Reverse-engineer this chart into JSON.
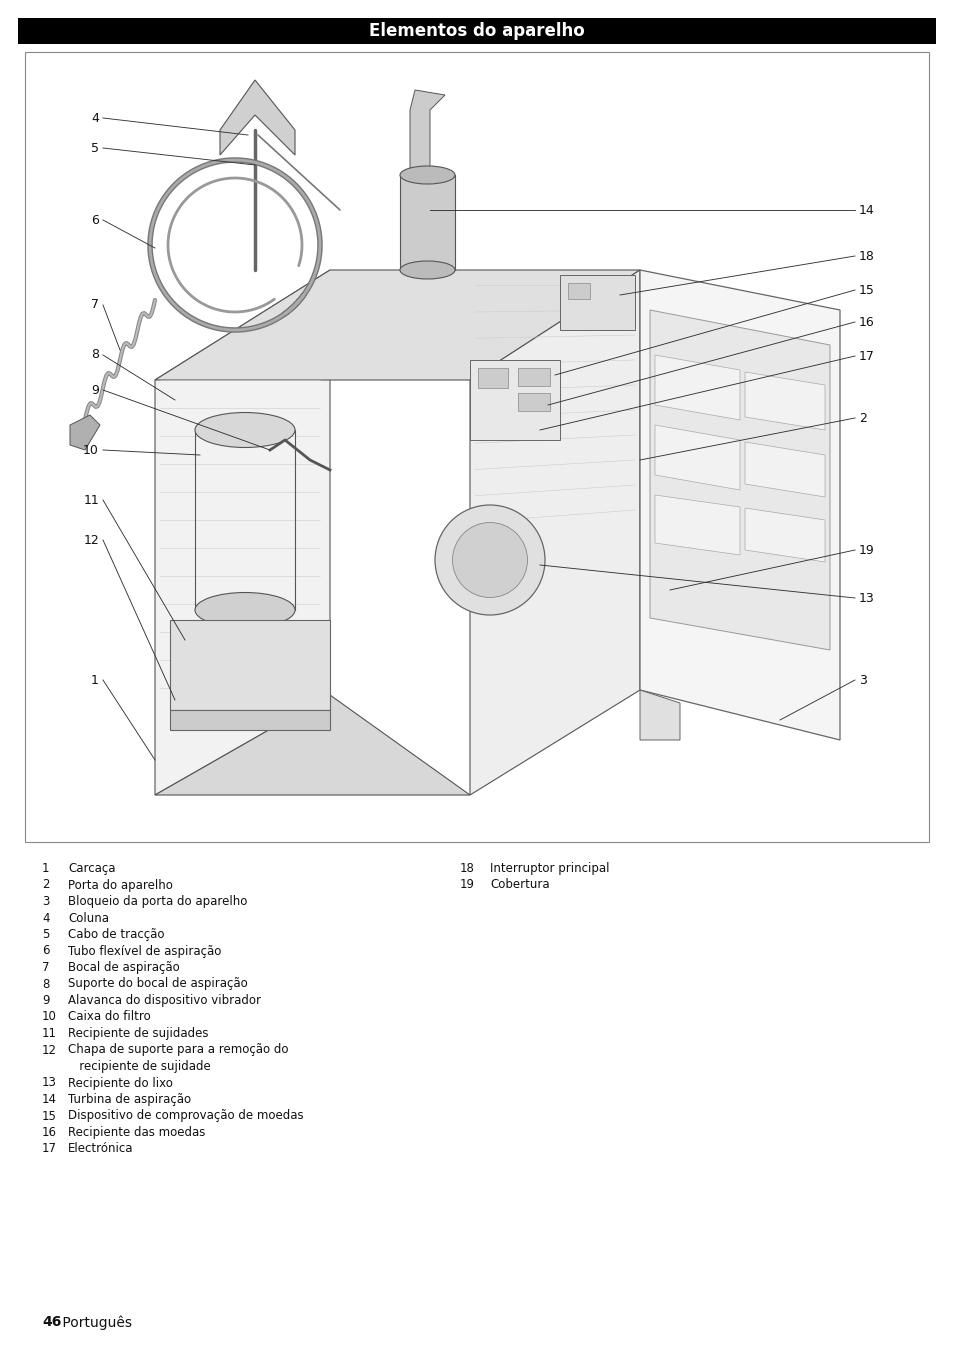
{
  "title": "Elementos do aparelho",
  "title_bg": "#000000",
  "title_color": "#ffffff",
  "title_fontsize": 12,
  "page_bg": "#ffffff",
  "border_color": "#000000",
  "legend_col1": [
    [
      "1",
      "Carcaça"
    ],
    [
      "2",
      "Porta do aparelho"
    ],
    [
      "3",
      "Bloqueio da porta do aparelho"
    ],
    [
      "4",
      "Coluna"
    ],
    [
      "5",
      "Cabo de tracção"
    ],
    [
      "6",
      "Tubo flexível de aspiração"
    ],
    [
      "7",
      "Bocal de aspiração"
    ],
    [
      "8",
      "Suporte do bocal de aspiração"
    ],
    [
      "9",
      "Alavanca do dispositivo vibrador"
    ],
    [
      "10",
      "Caixa do filtro"
    ],
    [
      "11",
      "Recipiente de sujidades"
    ],
    [
      "12",
      "Chapa de suporte para a remoção do"
    ],
    [
      "",
      "   recipiente de sujidade"
    ],
    [
      "13",
      "Recipiente do lixo"
    ],
    [
      "14",
      "Turbina de aspiração"
    ],
    [
      "15",
      "Dispositivo de comprovação de moedas"
    ],
    [
      "16",
      "Recipiente das moedas"
    ],
    [
      "17",
      "Electrónica"
    ]
  ],
  "legend_col2": [
    [
      "18",
      "Interruptor principal"
    ],
    [
      "19",
      "Cobertura"
    ]
  ],
  "footer_bold": "46",
  "footer_normal": " Português"
}
